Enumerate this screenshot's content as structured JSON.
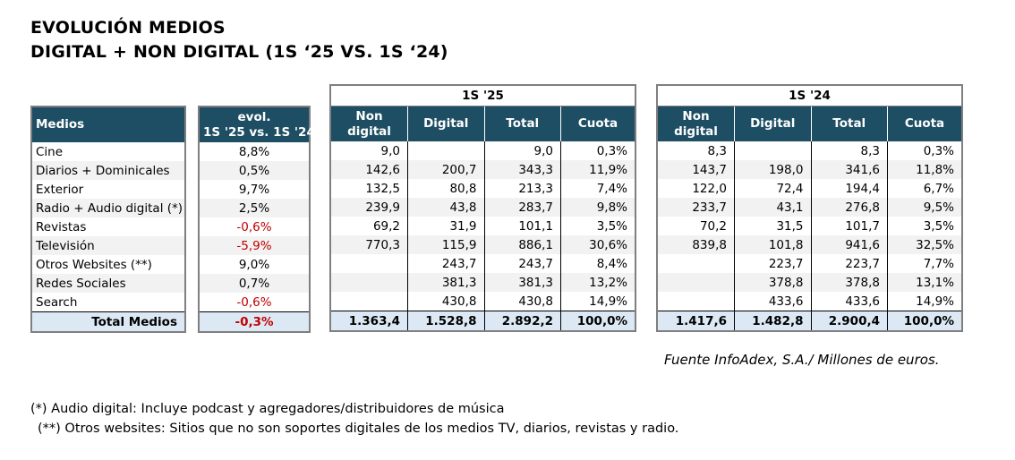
{
  "title": {
    "line1": "EVOLUCIÓN MEDIOS",
    "line2": "DIGITAL + NON DIGITAL (1S ‘25 VS. 1S ‘24)"
  },
  "media_table": {
    "header": "Medios",
    "rows": [
      "Cine",
      "Diarios + Dominicales",
      "Exterior",
      "Radio + Audio digital (*)",
      "Revistas",
      "Televisión",
      "Otros Websites (**)",
      "Redes Sociales",
      "Search"
    ],
    "total_label": "Total Medios"
  },
  "evol_table": {
    "header_line1": "evol.",
    "header_line2": "1S '25 vs. 1S '24",
    "values": [
      "8,8%",
      "0,5%",
      "9,7%",
      "2,5%",
      "-0,6%",
      "-5,9%",
      "9,0%",
      "0,7%",
      "-0,6%"
    ],
    "negative": [
      false,
      false,
      false,
      false,
      true,
      true,
      false,
      false,
      true
    ],
    "total": "-0,3%",
    "total_negative": true
  },
  "period_25": {
    "label": "1S '25",
    "columns": {
      "non_digital_1": "Non",
      "non_digital_2": "digital",
      "digital": "Digital",
      "total": "Total",
      "cuota": "Cuota"
    },
    "rows": [
      [
        "9,0",
        "",
        "9,0",
        "0,3%"
      ],
      [
        "142,6",
        "200,7",
        "343,3",
        "11,9%"
      ],
      [
        "132,5",
        "80,8",
        "213,3",
        "7,4%"
      ],
      [
        "239,9",
        "43,8",
        "283,7",
        "9,8%"
      ],
      [
        "69,2",
        "31,9",
        "101,1",
        "3,5%"
      ],
      [
        "770,3",
        "115,9",
        "886,1",
        "30,6%"
      ],
      [
        "",
        "243,7",
        "243,7",
        "8,4%"
      ],
      [
        "",
        "381,3",
        "381,3",
        "13,2%"
      ],
      [
        "",
        "430,8",
        "430,8",
        "14,9%"
      ]
    ],
    "total": [
      "1.363,4",
      "1.528,8",
      "2.892,2",
      "100,0%"
    ]
  },
  "period_24": {
    "label": "1S '24",
    "columns": {
      "non_digital_1": "Non",
      "non_digital_2": "digital",
      "digital": "Digital",
      "total": "Total",
      "cuota": "Cuota"
    },
    "rows": [
      [
        "8,3",
        "",
        "8,3",
        "0,3%"
      ],
      [
        "143,7",
        "198,0",
        "341,6",
        "11,8%"
      ],
      [
        "122,0",
        "72,4",
        "194,4",
        "6,7%"
      ],
      [
        "233,7",
        "43,1",
        "276,8",
        "9,5%"
      ],
      [
        "70,2",
        "31,5",
        "101,7",
        "3,5%"
      ],
      [
        "839,8",
        "101,8",
        "941,6",
        "32,5%"
      ],
      [
        "",
        "223,7",
        "223,7",
        "7,7%"
      ],
      [
        "",
        "378,8",
        "378,8",
        "13,1%"
      ],
      [
        "",
        "433,6",
        "433,6",
        "14,9%"
      ]
    ],
    "total": [
      "1.417,6",
      "1.482,8",
      "2.900,4",
      "100,0%"
    ]
  },
  "source": "Fuente InfoAdex, S.A./ Millones de euros.",
  "notes": [
    "(*) Audio digital: Incluye podcast y agregadores/distribuidores de música",
    "(**) Otros websites: Sitios que no son soportes digitales de los medios TV, diarios, revistas y radio."
  ]
}
